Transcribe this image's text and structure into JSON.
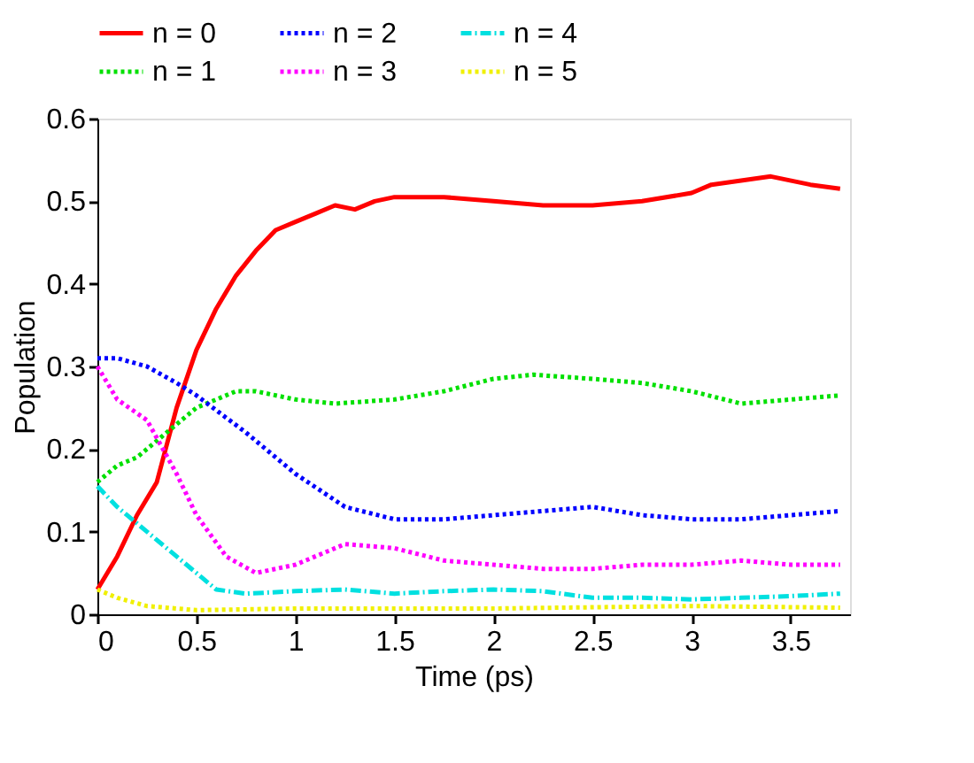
{
  "chart_data": {
    "type": "line",
    "xlabel": "Time (ps)",
    "ylabel": "Population",
    "xlim": [
      0,
      3.8
    ],
    "xticks": [
      0,
      0.5,
      1,
      1.5,
      2,
      2.5,
      3,
      3.5
    ],
    "ylim": [
      0,
      0.6
    ],
    "yticks": [
      0,
      0.1,
      0.2,
      0.3,
      0.4,
      0.5,
      0.6
    ],
    "grid": false,
    "legend": "top",
    "marker": "none",
    "series": [
      {
        "name": "n = 0",
        "color": "#ff0000",
        "line_style": "solid",
        "x": [
          0,
          0.1,
          0.2,
          0.3,
          0.4,
          0.5,
          0.6,
          0.7,
          0.8,
          0.9,
          1.0,
          1.1,
          1.2,
          1.3,
          1.4,
          1.5,
          1.75,
          2.0,
          2.25,
          2.5,
          2.75,
          3.0,
          3.1,
          3.25,
          3.4,
          3.6,
          3.75
        ],
        "values": [
          0.03,
          0.07,
          0.12,
          0.16,
          0.25,
          0.32,
          0.37,
          0.41,
          0.44,
          0.465,
          0.475,
          0.485,
          0.495,
          0.49,
          0.5,
          0.505,
          0.505,
          0.5,
          0.495,
          0.495,
          0.5,
          0.51,
          0.52,
          0.525,
          0.53,
          0.52,
          0.515
        ]
      },
      {
        "name": "n = 1",
        "color": "#00e000",
        "line_style": "dotted",
        "x": [
          0,
          0.1,
          0.2,
          0.3,
          0.4,
          0.5,
          0.6,
          0.7,
          0.8,
          1.0,
          1.2,
          1.5,
          1.75,
          2.0,
          2.2,
          2.5,
          2.75,
          3.0,
          3.25,
          3.5,
          3.75
        ],
        "values": [
          0.16,
          0.18,
          0.19,
          0.21,
          0.23,
          0.25,
          0.26,
          0.27,
          0.27,
          0.26,
          0.255,
          0.26,
          0.27,
          0.285,
          0.29,
          0.285,
          0.28,
          0.27,
          0.255,
          0.26,
          0.265
        ]
      },
      {
        "name": "n = 2",
        "color": "#0000ff",
        "line_style": "dotted",
        "x": [
          0,
          0.1,
          0.25,
          0.4,
          0.5,
          0.75,
          1.0,
          1.25,
          1.5,
          1.75,
          2.0,
          2.25,
          2.5,
          2.75,
          3.0,
          3.25,
          3.5,
          3.75
        ],
        "values": [
          0.31,
          0.31,
          0.3,
          0.28,
          0.265,
          0.22,
          0.17,
          0.13,
          0.115,
          0.115,
          0.12,
          0.125,
          0.13,
          0.12,
          0.115,
          0.115,
          0.12,
          0.125
        ]
      },
      {
        "name": "n = 3",
        "color": "#ff00ff",
        "line_style": "dotted",
        "x": [
          0,
          0.1,
          0.25,
          0.4,
          0.5,
          0.65,
          0.8,
          1.0,
          1.25,
          1.5,
          1.75,
          2.0,
          2.25,
          2.5,
          2.75,
          3.0,
          3.25,
          3.5,
          3.75
        ],
        "values": [
          0.3,
          0.26,
          0.235,
          0.17,
          0.12,
          0.07,
          0.05,
          0.06,
          0.085,
          0.08,
          0.065,
          0.06,
          0.055,
          0.055,
          0.06,
          0.06,
          0.065,
          0.06,
          0.06
        ]
      },
      {
        "name": "n = 4",
        "color": "#00e0e0",
        "line_style": "dashed",
        "x": [
          0,
          0.1,
          0.25,
          0.4,
          0.5,
          0.6,
          0.75,
          1.0,
          1.25,
          1.5,
          1.75,
          2.0,
          2.25,
          2.5,
          2.75,
          3.0,
          3.25,
          3.5,
          3.75
        ],
        "values": [
          0.155,
          0.13,
          0.1,
          0.07,
          0.05,
          0.03,
          0.025,
          0.028,
          0.03,
          0.025,
          0.028,
          0.03,
          0.028,
          0.02,
          0.02,
          0.018,
          0.02,
          0.022,
          0.025
        ]
      },
      {
        "name": "n = 5",
        "color": "#f0f000",
        "line_style": "dotted",
        "x": [
          0,
          0.1,
          0.25,
          0.5,
          1.0,
          2.0,
          3.0,
          3.75
        ],
        "values": [
          0.03,
          0.02,
          0.01,
          0.005,
          0.007,
          0.007,
          0.01,
          0.008
        ]
      }
    ]
  }
}
